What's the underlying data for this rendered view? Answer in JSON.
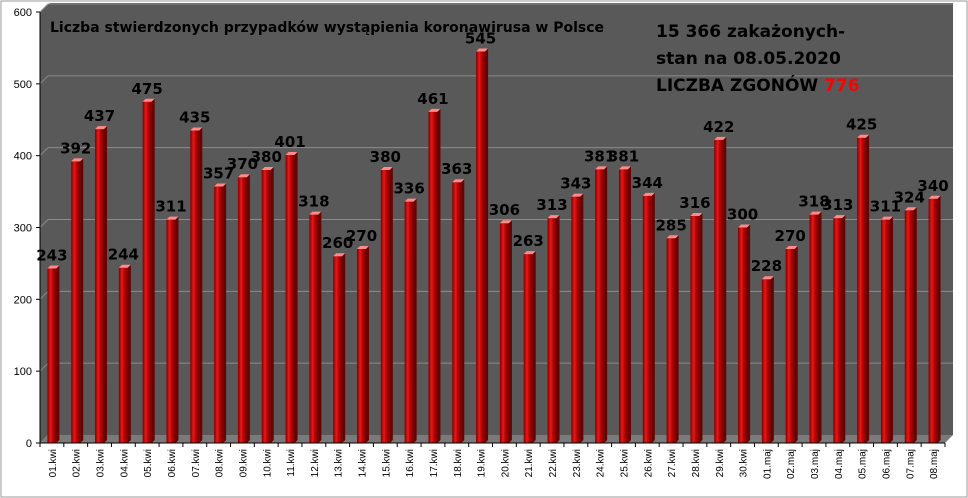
{
  "chart_data": {
    "type": "bar",
    "title": "Liczba stwierdzonych przypadków wystąpienia koronawirusa w Polsce",
    "categories": [
      "01.kwi",
      "02.kwi",
      "03.kwi",
      "04.kwi",
      "05.kwi",
      "06.kwi",
      "07.kwi",
      "08.kwi",
      "09.kwi",
      "10.kwi",
      "11.kwi",
      "12.kwi",
      "13.kwi",
      "14.kwi",
      "15.kwi",
      "16.kwi",
      "17.kwi",
      "18.kwi",
      "19.kwi",
      "20.kwi",
      "21.kwi",
      "22.kwi",
      "23.kwi",
      "24.kwi",
      "25.kwi",
      "26.kwi",
      "27.kwi",
      "28.kwi",
      "29.kwi",
      "30.kwi",
      "01.maj",
      "02.maj",
      "03.maj",
      "04.maj",
      "05.maj",
      "06.maj",
      "07.maj",
      "08.maj"
    ],
    "values": [
      243,
      392,
      437,
      244,
      475,
      311,
      435,
      357,
      370,
      380,
      401,
      318,
      260,
      270,
      380,
      336,
      461,
      363,
      545,
      306,
      263,
      313,
      343,
      381,
      381,
      344,
      285,
      316,
      422,
      300,
      228,
      270,
      318,
      313,
      425,
      311,
      324,
      340
    ],
    "ylim": [
      0,
      600
    ],
    "yticks": [
      0,
      100,
      200,
      300,
      400,
      500,
      600
    ],
    "grid": true,
    "xlabel": "",
    "ylabel": ""
  },
  "info": {
    "line1": "15 366 zakażonych-",
    "line2": "stan na 08.05.2020",
    "line3_prefix": "LICZBA ZGONÓW ",
    "line3_value": "776"
  },
  "colors": {
    "plot_background": "#595959",
    "bar": "#c00000",
    "bar_highlight": "#ff6b6b",
    "deaths_value": "#ff0000"
  }
}
